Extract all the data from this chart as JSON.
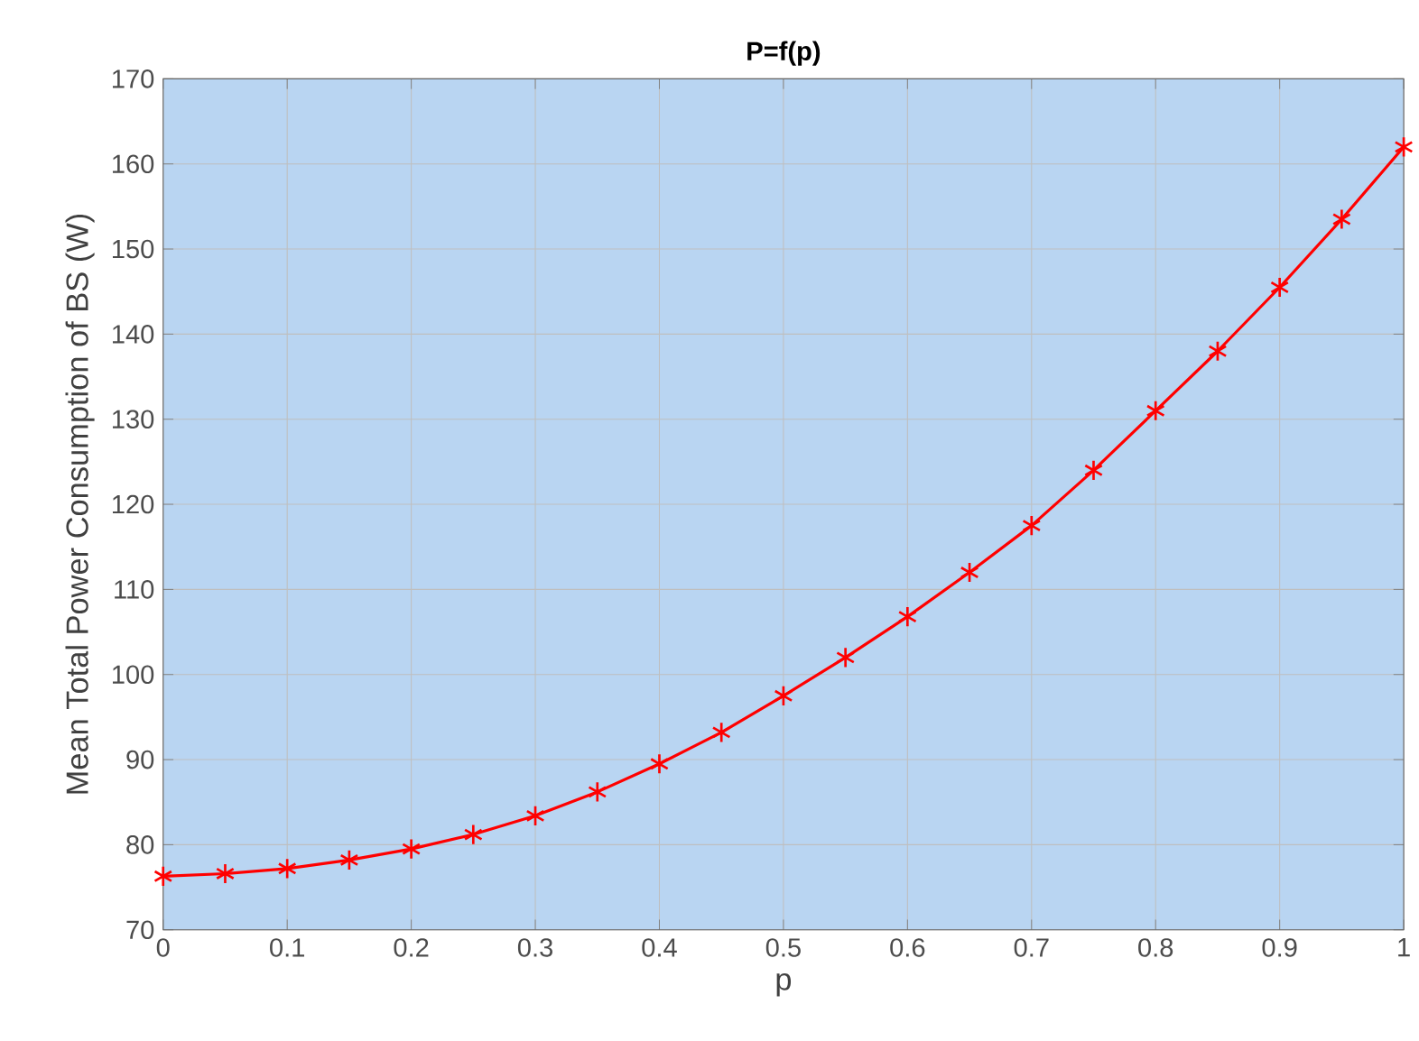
{
  "chart_data": {
    "type": "line",
    "title": "P=f(p)",
    "xlabel": "p",
    "ylabel": "Mean Total Power Consumption of BS (W)",
    "x": [
      0,
      0.05,
      0.1,
      0.15,
      0.2,
      0.25,
      0.3,
      0.35,
      0.4,
      0.45,
      0.5,
      0.55,
      0.6,
      0.65,
      0.7,
      0.75,
      0.8,
      0.85,
      0.9,
      0.95,
      1
    ],
    "series": [
      {
        "color": "#ff0000",
        "values": [
          76.3,
          76.6,
          77.2,
          78.2,
          79.5,
          81.2,
          83.4,
          86.2,
          89.5,
          93.2,
          97.5,
          102,
          106.8,
          112,
          117.5,
          124,
          131,
          138,
          145.5,
          153.5,
          162
        ]
      }
    ],
    "xlim": [
      0,
      1
    ],
    "xticks": [
      0,
      0.1,
      0.2,
      0.3,
      0.4,
      0.5,
      0.6,
      0.7,
      0.8,
      0.9,
      1
    ],
    "ylim": [
      70,
      170
    ],
    "yticks": [
      70,
      80,
      90,
      100,
      110,
      120,
      130,
      140,
      150,
      160,
      170
    ],
    "grid": true,
    "marker": "cross",
    "line_style": "solid"
  }
}
